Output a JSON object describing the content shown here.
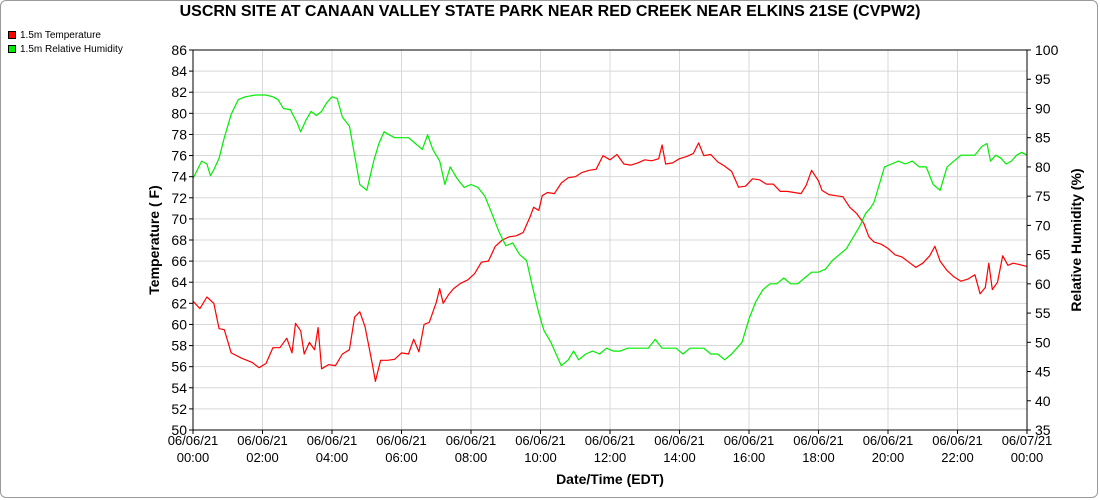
{
  "chart_data": {
    "type": "line",
    "title": "USCRN SITE AT CANAAN VALLEY STATE PARK NEAR RED CREEK NEAR ELKINS 21SE (CVPW2)",
    "xlabel": "Date/Time (EDT)",
    "ylabel_left": "Temperature ( F)",
    "ylabel_right": "Relative Humidity (%)",
    "x_ticks": [
      {
        "date": "06/06/21",
        "time": "00:00"
      },
      {
        "date": "06/06/21",
        "time": "02:00"
      },
      {
        "date": "06/06/21",
        "time": "04:00"
      },
      {
        "date": "06/06/21",
        "time": "06:00"
      },
      {
        "date": "06/06/21",
        "time": "08:00"
      },
      {
        "date": "06/06/21",
        "time": "10:00"
      },
      {
        "date": "06/06/21",
        "time": "12:00"
      },
      {
        "date": "06/06/21",
        "time": "14:00"
      },
      {
        "date": "06/06/21",
        "time": "16:00"
      },
      {
        "date": "06/06/21",
        "time": "18:00"
      },
      {
        "date": "06/06/21",
        "time": "20:00"
      },
      {
        "date": "06/06/21",
        "time": "22:00"
      },
      {
        "date": "06/07/21",
        "time": "00:00"
      }
    ],
    "xlim": [
      0,
      24
    ],
    "ylim_left": [
      50,
      86
    ],
    "yticks_left": [
      50,
      52,
      54,
      56,
      58,
      60,
      62,
      64,
      66,
      68,
      70,
      72,
      74,
      76,
      78,
      80,
      82,
      84,
      86
    ],
    "ylim_right": [
      35,
      100
    ],
    "yticks_right": [
      35,
      40,
      45,
      50,
      55,
      60,
      65,
      70,
      75,
      80,
      85,
      90,
      95,
      100
    ],
    "grid": true,
    "legend_position": "top-left",
    "series": [
      {
        "name": "1.5m Temperature",
        "axis": "left",
        "color": "#ff0000",
        "points": [
          [
            0,
            62.2
          ],
          [
            0.2,
            61.5
          ],
          [
            0.4,
            62.6
          ],
          [
            0.6,
            62
          ],
          [
            0.75,
            59.6
          ],
          [
            0.9,
            59.5
          ],
          [
            1.1,
            57.3
          ],
          [
            1.4,
            56.8
          ],
          [
            1.7,
            56.4
          ],
          [
            1.9,
            55.9
          ],
          [
            2.1,
            56.3
          ],
          [
            2.3,
            57.8
          ],
          [
            2.5,
            57.8
          ],
          [
            2.7,
            58.7
          ],
          [
            2.85,
            57.3
          ],
          [
            2.95,
            60.1
          ],
          [
            3.1,
            59.4
          ],
          [
            3.2,
            57.2
          ],
          [
            3.35,
            58.3
          ],
          [
            3.5,
            57.6
          ],
          [
            3.6,
            59.7
          ],
          [
            3.7,
            55.8
          ],
          [
            3.9,
            56.2
          ],
          [
            4.1,
            56.1
          ],
          [
            4.3,
            57.2
          ],
          [
            4.5,
            57.6
          ],
          [
            4.65,
            60.7
          ],
          [
            4.8,
            61.2
          ],
          [
            4.95,
            59.8
          ],
          [
            5.15,
            56.4
          ],
          [
            5.25,
            54.6
          ],
          [
            5.4,
            56.6
          ],
          [
            5.6,
            56.6
          ],
          [
            5.8,
            56.7
          ],
          [
            6.0,
            57.3
          ],
          [
            6.2,
            57.2
          ],
          [
            6.35,
            58.6
          ],
          [
            6.5,
            57.4
          ],
          [
            6.65,
            60.0
          ],
          [
            6.8,
            60.2
          ],
          [
            7.0,
            62.1
          ],
          [
            7.1,
            63.4
          ],
          [
            7.2,
            62.0
          ],
          [
            7.35,
            62.8
          ],
          [
            7.5,
            63.4
          ],
          [
            7.7,
            63.9
          ],
          [
            7.9,
            64.2
          ],
          [
            8.1,
            64.8
          ],
          [
            8.3,
            65.9
          ],
          [
            8.5,
            66.0
          ],
          [
            8.7,
            67.4
          ],
          [
            8.9,
            68.0
          ],
          [
            9.1,
            68.3
          ],
          [
            9.3,
            68.4
          ],
          [
            9.5,
            68.7
          ],
          [
            9.7,
            70.2
          ],
          [
            9.8,
            71.1
          ],
          [
            9.95,
            70.8
          ],
          [
            10.05,
            72.2
          ],
          [
            10.2,
            72.5
          ],
          [
            10.4,
            72.4
          ],
          [
            10.6,
            73.4
          ],
          [
            10.8,
            73.9
          ],
          [
            11,
            74.0
          ],
          [
            11.2,
            74.4
          ],
          [
            11.4,
            74.6
          ],
          [
            11.6,
            74.7
          ],
          [
            11.8,
            76.0
          ],
          [
            12,
            75.6
          ],
          [
            12.2,
            76.1
          ],
          [
            12.4,
            75.2
          ],
          [
            12.6,
            75.1
          ],
          [
            12.8,
            75.3
          ],
          [
            13,
            75.6
          ],
          [
            13.2,
            75.5
          ],
          [
            13.4,
            75.7
          ],
          [
            13.5,
            77.0
          ],
          [
            13.6,
            75.2
          ],
          [
            13.8,
            75.3
          ],
          [
            14,
            75.7
          ],
          [
            14.2,
            75.9
          ],
          [
            14.4,
            76.2
          ],
          [
            14.55,
            77.2
          ],
          [
            14.7,
            76.0
          ],
          [
            14.9,
            76.1
          ],
          [
            15.1,
            75.4
          ],
          [
            15.3,
            75.0
          ],
          [
            15.5,
            74.5
          ],
          [
            15.7,
            73.0
          ],
          [
            15.9,
            73.1
          ],
          [
            16.1,
            73.8
          ],
          [
            16.3,
            73.7
          ],
          [
            16.5,
            73.3
          ],
          [
            16.7,
            73.3
          ],
          [
            16.9,
            72.6
          ],
          [
            17.1,
            72.6
          ],
          [
            17.3,
            72.5
          ],
          [
            17.5,
            72.4
          ],
          [
            17.65,
            73.2
          ],
          [
            17.8,
            74.6
          ],
          [
            18.0,
            73.6
          ],
          [
            18.1,
            72.7
          ],
          [
            18.3,
            72.3
          ],
          [
            18.5,
            72.2
          ],
          [
            18.7,
            72.1
          ],
          [
            18.9,
            71.1
          ],
          [
            19.1,
            70.5
          ],
          [
            19.3,
            69.6
          ],
          [
            19.45,
            68.3
          ],
          [
            19.6,
            67.8
          ],
          [
            19.8,
            67.6
          ],
          [
            20.0,
            67.2
          ],
          [
            20.2,
            66.6
          ],
          [
            20.4,
            66.4
          ],
          [
            20.6,
            65.9
          ],
          [
            20.8,
            65.4
          ],
          [
            21.0,
            65.8
          ],
          [
            21.2,
            66.5
          ],
          [
            21.35,
            67.4
          ],
          [
            21.5,
            66.0
          ],
          [
            21.7,
            65.1
          ],
          [
            21.9,
            64.5
          ],
          [
            22.1,
            64.1
          ],
          [
            22.3,
            64.3
          ],
          [
            22.5,
            64.7
          ],
          [
            22.65,
            62.9
          ],
          [
            22.8,
            63.5
          ],
          [
            22.9,
            65.8
          ],
          [
            23.0,
            63.3
          ],
          [
            23.15,
            64.0
          ],
          [
            23.3,
            66.5
          ],
          [
            23.45,
            65.6
          ],
          [
            23.6,
            65.8
          ],
          [
            23.75,
            65.7
          ],
          [
            24,
            65.5
          ]
        ]
      },
      {
        "name": "1.5m Relative Humidity",
        "axis": "right",
        "color": "#00ee00",
        "points": [
          [
            0,
            78
          ],
          [
            0.25,
            81
          ],
          [
            0.4,
            80.5
          ],
          [
            0.5,
            78.5
          ],
          [
            0.6,
            79.5
          ],
          [
            0.75,
            81.5
          ],
          [
            0.9,
            85
          ],
          [
            1.1,
            89
          ],
          [
            1.3,
            91.5
          ],
          [
            1.5,
            92
          ],
          [
            1.8,
            92.3
          ],
          [
            2.1,
            92.3
          ],
          [
            2.3,
            92
          ],
          [
            2.45,
            91.5
          ],
          [
            2.6,
            90
          ],
          [
            2.8,
            89.8
          ],
          [
            3.0,
            87.5
          ],
          [
            3.1,
            86
          ],
          [
            3.25,
            88
          ],
          [
            3.4,
            89.5
          ],
          [
            3.55,
            88.8
          ],
          [
            3.7,
            89.5
          ],
          [
            3.85,
            91
          ],
          [
            4.0,
            92
          ],
          [
            4.15,
            91.7
          ],
          [
            4.3,
            88.5
          ],
          [
            4.5,
            87
          ],
          [
            4.65,
            82
          ],
          [
            4.8,
            77
          ],
          [
            5.0,
            76
          ],
          [
            5.2,
            81
          ],
          [
            5.35,
            84
          ],
          [
            5.5,
            86
          ],
          [
            5.65,
            85.5
          ],
          [
            5.8,
            85
          ],
          [
            6.0,
            85
          ],
          [
            6.2,
            85
          ],
          [
            6.4,
            84
          ],
          [
            6.6,
            83
          ],
          [
            6.75,
            85.5
          ],
          [
            6.9,
            83
          ],
          [
            7.1,
            81
          ],
          [
            7.25,
            77
          ],
          [
            7.4,
            80
          ],
          [
            7.6,
            78
          ],
          [
            7.8,
            76.5
          ],
          [
            8.0,
            77
          ],
          [
            8.2,
            76.5
          ],
          [
            8.4,
            75
          ],
          [
            8.6,
            72
          ],
          [
            8.8,
            69
          ],
          [
            9.0,
            66.5
          ],
          [
            9.2,
            67
          ],
          [
            9.4,
            65
          ],
          [
            9.6,
            64
          ],
          [
            9.75,
            60
          ],
          [
            9.95,
            55
          ],
          [
            10.1,
            52
          ],
          [
            10.3,
            50
          ],
          [
            10.45,
            48
          ],
          [
            10.6,
            46
          ],
          [
            10.8,
            47
          ],
          [
            10.95,
            48.5
          ],
          [
            11.1,
            47
          ],
          [
            11.3,
            48
          ],
          [
            11.5,
            48.5
          ],
          [
            11.7,
            48
          ],
          [
            11.9,
            49
          ],
          [
            12.1,
            48.5
          ],
          [
            12.3,
            48.5
          ],
          [
            12.5,
            49
          ],
          [
            12.7,
            49
          ],
          [
            12.9,
            49
          ],
          [
            13.1,
            49
          ],
          [
            13.3,
            50.5
          ],
          [
            13.5,
            49
          ],
          [
            13.7,
            49
          ],
          [
            13.9,
            49
          ],
          [
            14.1,
            48
          ],
          [
            14.3,
            49
          ],
          [
            14.5,
            49
          ],
          [
            14.7,
            49
          ],
          [
            14.9,
            48
          ],
          [
            15.1,
            48
          ],
          [
            15.3,
            47
          ],
          [
            15.5,
            48
          ],
          [
            15.65,
            49
          ],
          [
            15.8,
            50
          ],
          [
            16.0,
            54
          ],
          [
            16.2,
            57
          ],
          [
            16.4,
            59
          ],
          [
            16.6,
            60
          ],
          [
            16.8,
            60
          ],
          [
            17.0,
            61
          ],
          [
            17.2,
            60
          ],
          [
            17.4,
            60
          ],
          [
            17.6,
            61
          ],
          [
            17.8,
            62
          ],
          [
            18.0,
            62
          ],
          [
            18.2,
            62.5
          ],
          [
            18.4,
            64
          ],
          [
            18.6,
            65
          ],
          [
            18.8,
            66
          ],
          [
            19.0,
            68
          ],
          [
            19.2,
            70
          ],
          [
            19.35,
            72
          ],
          [
            19.5,
            73
          ],
          [
            19.6,
            74
          ],
          [
            19.75,
            77
          ],
          [
            19.9,
            80
          ],
          [
            20.1,
            80.5
          ],
          [
            20.3,
            81
          ],
          [
            20.5,
            80.5
          ],
          [
            20.7,
            81
          ],
          [
            20.9,
            80
          ],
          [
            21.1,
            80
          ],
          [
            21.3,
            77
          ],
          [
            21.5,
            76
          ],
          [
            21.7,
            80
          ],
          [
            21.9,
            81
          ],
          [
            22.1,
            82
          ],
          [
            22.3,
            82
          ],
          [
            22.5,
            82
          ],
          [
            22.7,
            83.5
          ],
          [
            22.85,
            84
          ],
          [
            22.95,
            81
          ],
          [
            23.1,
            82
          ],
          [
            23.25,
            81.5
          ],
          [
            23.4,
            80.5
          ],
          [
            23.55,
            81
          ],
          [
            23.7,
            82
          ],
          [
            23.85,
            82.5
          ],
          [
            24,
            82
          ]
        ]
      }
    ]
  }
}
